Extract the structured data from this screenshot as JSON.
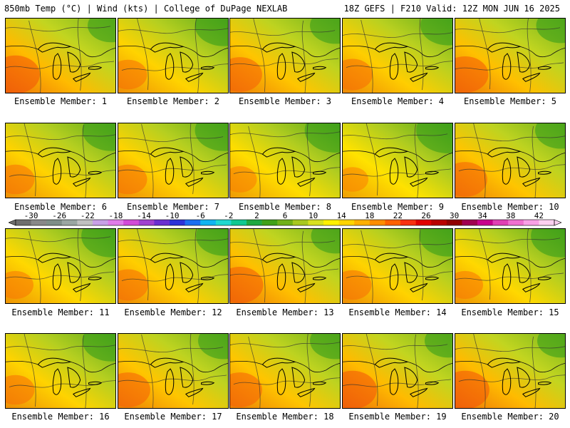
{
  "header": {
    "left": "850mb Temp (°C) | Wind (kts) | College of DuPage NEXLAB",
    "right": "18Z GEFS | F210 Valid: 12Z MON JUN 16 2025"
  },
  "members": [
    {
      "label": "Ensemble Member: 1",
      "warmth": 0.55
    },
    {
      "label": "Ensemble Member: 2",
      "warmth": 0.3
    },
    {
      "label": "Ensemble Member: 3",
      "warmth": 0.45
    },
    {
      "label": "Ensemble Member: 4",
      "warmth": 0.35
    },
    {
      "label": "Ensemble Member: 5",
      "warmth": 0.5
    },
    {
      "label": "Ensemble Member: 6",
      "warmth": 0.3
    },
    {
      "label": "Ensemble Member: 7",
      "warmth": 0.3
    },
    {
      "label": "Ensemble Member: 8",
      "warmth": 0.2
    },
    {
      "label": "Ensemble Member: 9",
      "warmth": 0.15
    },
    {
      "label": "Ensemble Member: 10",
      "warmth": 0.45
    },
    {
      "label": "Ensemble Member: 11",
      "warmth": 0.25
    },
    {
      "label": "Ensemble Member: 12",
      "warmth": 0.35
    },
    {
      "label": "Ensemble Member: 13",
      "warmth": 0.5
    },
    {
      "label": "Ensemble Member: 14",
      "warmth": 0.3
    },
    {
      "label": "Ensemble Member: 15",
      "warmth": 0.25
    },
    {
      "label": "Ensemble Member: 16",
      "warmth": 0.3
    },
    {
      "label": "Ensemble Member: 17",
      "warmth": 0.45
    },
    {
      "label": "Ensemble Member: 18",
      "warmth": 0.45
    },
    {
      "label": "Ensemble Member: 19",
      "warmth": 0.55
    },
    {
      "label": "Ensemble Member: 20",
      "warmth": 0.55
    }
  ],
  "colorbar": {
    "labels": [
      "-30",
      "-26",
      "-22",
      "-18",
      "-14",
      "-10",
      "-6",
      "-2",
      "2",
      "6",
      "10",
      "14",
      "18",
      "22",
      "26",
      "30",
      "34",
      "38",
      "42"
    ],
    "colors": [
      "#6e6e6e",
      "#888888",
      "#7e8e88",
      "#9aa6a2",
      "#c0c0c0",
      "#c8a0e6",
      "#e07be8",
      "#d24ad8",
      "#a040d0",
      "#6a2ed0",
      "#2c32d8",
      "#1c6ef0",
      "#10b4f0",
      "#20d8d0",
      "#10c890",
      "#20a840",
      "#40a018",
      "#70b018",
      "#a8c820",
      "#d8e020",
      "#fff000",
      "#ffd400",
      "#ffb000",
      "#ff8c00",
      "#ff6000",
      "#f83010",
      "#e00000",
      "#b80000",
      "#900000",
      "#a00050",
      "#c8008c",
      "#e040b4",
      "#f070d0",
      "#f8a0e6",
      "#fcd0f0"
    ]
  }
}
